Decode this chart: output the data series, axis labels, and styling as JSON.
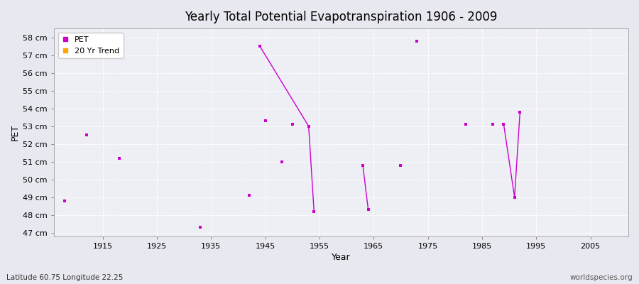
{
  "title": "Yearly Total Potential Evapotranspiration 1906 - 2009",
  "xlabel": "Year",
  "ylabel": "PET",
  "footnote_left": "Latitude 60.75 Longitude 22.25",
  "footnote_right": "worldspecies.org",
  "xlim": [
    1906,
    2012
  ],
  "ylim": [
    46.8,
    58.5
  ],
  "yticks": [
    47,
    48,
    49,
    50,
    51,
    52,
    53,
    54,
    55,
    56,
    57,
    58
  ],
  "ytick_labels": [
    "47 cm",
    "48 cm",
    "49 cm",
    "50 cm",
    "51 cm",
    "52 cm",
    "53 cm",
    "54 cm",
    "55 cm",
    "56 cm",
    "57 cm",
    "58 cm"
  ],
  "xticks": [
    1915,
    1925,
    1935,
    1945,
    1955,
    1965,
    1975,
    1985,
    1995,
    2005
  ],
  "pet_color": "#CC00CC",
  "trend_color": "#FFA500",
  "bg_color": "#E8E8F0",
  "plot_bg": "#EEEEF5",
  "grid_color": "#FFFFFF",
  "pet_points": [
    [
      1908,
      48.8
    ],
    [
      1912,
      52.5
    ],
    [
      1918,
      51.2
    ],
    [
      1933,
      47.3
    ],
    [
      1942,
      49.1
    ],
    [
      1944,
      57.5
    ],
    [
      1945,
      53.3
    ],
    [
      1948,
      51.0
    ],
    [
      1950,
      53.1
    ],
    [
      1953,
      53.0
    ],
    [
      1963,
      50.8
    ],
    [
      1970,
      50.8
    ],
    [
      1973,
      57.8
    ],
    [
      1982,
      53.1
    ],
    [
      1987,
      53.1
    ],
    [
      1989,
      53.1
    ],
    [
      1992,
      53.8
    ]
  ],
  "pet_lines": [
    [
      [
        1944,
        57.5
      ],
      [
        1953,
        53.0
      ],
      [
        1954,
        48.2
      ]
    ],
    [
      [
        1963,
        50.8
      ],
      [
        1964,
        48.3
      ]
    ],
    [
      [
        1989,
        53.1
      ],
      [
        1991,
        49.0
      ],
      [
        1992,
        53.8
      ]
    ]
  ],
  "pet_line_only_points": [
    [
      1954,
      48.2
    ],
    [
      1964,
      48.3
    ],
    [
      1991,
      49.0
    ]
  ]
}
